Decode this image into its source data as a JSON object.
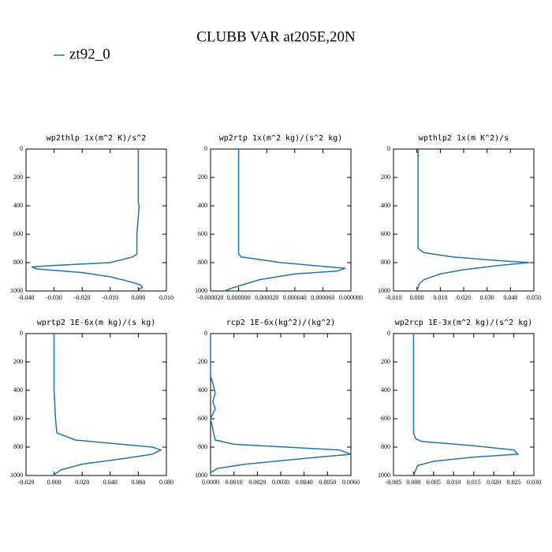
{
  "title": "CLUBB VAR at205E,20N",
  "legend": {
    "name": "zt92_0",
    "color": "#2173b0"
  },
  "chart_data": [
    {
      "type": "line",
      "title": "wp2thlp  1x(m^2 K)/s^2",
      "xlim": [
        -0.04,
        0.01
      ],
      "xticks": [
        {
          "value": -0.04,
          "label": "-0.040"
        },
        {
          "value": -0.03,
          "label": "-0.030"
        },
        {
          "value": -0.02,
          "label": "-0.020"
        },
        {
          "value": -0.01,
          "label": "-0.010"
        },
        {
          "value": 0,
          "label": "0.000"
        },
        {
          "value": 0.01,
          "label": "0.010"
        }
      ],
      "ylim": [
        1000,
        0
      ],
      "yticks": [
        0,
        200,
        400,
        600,
        800,
        1000
      ],
      "x": [
        0,
        0,
        0.0003,
        -0.0005,
        -0.0005,
        -0.002,
        -0.01,
        -0.03,
        -0.038,
        -0.036,
        -0.02,
        -0.01,
        -0.002,
        0.001,
        0.0015,
        0.0005,
        0
      ],
      "y": [
        0,
        380,
        400,
        600,
        740,
        760,
        800,
        820,
        830,
        845,
        870,
        900,
        940,
        960,
        975,
        985,
        1000
      ]
    },
    {
      "type": "line",
      "title": "wp2rtp  1x(m^2 kg)/(s^2 kg)",
      "xlim": [
        -2e-05,
        8e-05
      ],
      "xticks": [
        {
          "value": -2e-05,
          "label": "-0.000020"
        },
        {
          "value": 0,
          "label": "0.000000"
        },
        {
          "value": 2e-05,
          "label": "0.000020"
        },
        {
          "value": 4e-05,
          "label": "0.000040"
        },
        {
          "value": 6e-05,
          "label": "0.000060"
        },
        {
          "value": 8e-05,
          "label": "0.000080"
        }
      ],
      "ylim": [
        1000,
        0
      ],
      "yticks": [
        0,
        200,
        400,
        600,
        800,
        1000
      ],
      "x": [
        0,
        0,
        2e-06,
        3e-05,
        7.6e-05,
        7e-05,
        4e-05,
        1.5e-05,
        5e-06,
        -5e-06,
        -1e-05
      ],
      "y": [
        0,
        740,
        760,
        800,
        840,
        860,
        880,
        920,
        950,
        980,
        1000
      ]
    },
    {
      "type": "line",
      "title": "wpthlp2  1x(m K^2)/s",
      "xlim": [
        -0.01,
        0.05
      ],
      "xticks": [
        {
          "value": -0.01,
          "label": "-0.010"
        },
        {
          "value": 0,
          "label": "0.000"
        },
        {
          "value": 0.01,
          "label": "0.010"
        },
        {
          "value": 0.02,
          "label": "0.020"
        },
        {
          "value": 0.03,
          "label": "0.030"
        },
        {
          "value": 0.04,
          "label": "0.040"
        },
        {
          "value": 0.05,
          "label": "0.050"
        }
      ],
      "ylim": [
        1000,
        0
      ],
      "yticks": [
        0,
        200,
        400,
        600,
        800,
        1000
      ],
      "x": [
        0.0005,
        0.0005,
        0.003,
        0.015,
        0.03,
        0.048,
        0.035,
        0.02,
        0.01,
        0.003,
        0.001,
        0
      ],
      "y": [
        0,
        700,
        730,
        760,
        780,
        800,
        820,
        850,
        880,
        920,
        950,
        1000
      ]
    },
    {
      "type": "line",
      "title": "wprtp2  1E-6x(m kg)/(s kg)",
      "xlim": [
        -0.02,
        0.08
      ],
      "xticks": [
        {
          "value": -0.02,
          "label": "-0.020"
        },
        {
          "value": 0,
          "label": "0.000"
        },
        {
          "value": 0.02,
          "label": "0.020"
        },
        {
          "value": 0.04,
          "label": "0.040"
        },
        {
          "value": 0.06,
          "label": "0.060"
        },
        {
          "value": 0.08,
          "label": "0.080"
        }
      ],
      "ylim": [
        1000,
        0
      ],
      "yticks": [
        0,
        200,
        400,
        600,
        800,
        1000
      ],
      "x": [
        0,
        0,
        0.001,
        0.002,
        0.015,
        0.07,
        0.076,
        0.07,
        0.05,
        0.02,
        0.005,
        -0.001
      ],
      "y": [
        0,
        400,
        600,
        700,
        750,
        800,
        820,
        850,
        880,
        920,
        960,
        1000
      ]
    },
    {
      "type": "line",
      "title": "rcp2  1E-6x(kg^2)/(kg^2)",
      "xlim": [
        0,
        0.006
      ],
      "xticks": [
        {
          "value": 0,
          "label": "0.0000"
        },
        {
          "value": 0.001,
          "label": "0.0010"
        },
        {
          "value": 0.002,
          "label": "0.0020"
        },
        {
          "value": 0.003,
          "label": "0.0030"
        },
        {
          "value": 0.004,
          "label": "0.0040"
        },
        {
          "value": 0.005,
          "label": "0.0050"
        },
        {
          "value": 0.006,
          "label": "0.0060"
        }
      ],
      "ylim": [
        1000,
        0
      ],
      "yticks": [
        0,
        200,
        400,
        600,
        800,
        1000
      ],
      "x": [
        0,
        0,
        0.0001,
        0.0002,
        0.0001,
        0.0002,
        0,
        0.0002,
        0.001,
        0.0055,
        0.006,
        0.004,
        0.0015,
        0.0003,
        0,
        0
      ],
      "y": [
        0,
        300,
        350,
        420,
        480,
        530,
        600,
        750,
        780,
        820,
        850,
        880,
        920,
        950,
        980,
        1000
      ]
    },
    {
      "type": "line",
      "title": "wp2rcp  1E-3x(m^2 kg)/(s^2 kg)",
      "xlim": [
        -0.005,
        0.03
      ],
      "xticks": [
        {
          "value": -0.005,
          "label": "-0.005"
        },
        {
          "value": 0,
          "label": "0.000"
        },
        {
          "value": 0.005,
          "label": "0.005"
        },
        {
          "value": 0.01,
          "label": "0.010"
        },
        {
          "value": 0.015,
          "label": "0.015"
        },
        {
          "value": 0.02,
          "label": "0.020"
        },
        {
          "value": 0.025,
          "label": "0.025"
        },
        {
          "value": 0.03,
          "label": "0.030"
        }
      ],
      "ylim": [
        1000,
        0
      ],
      "yticks": [
        0,
        200,
        400,
        600,
        800,
        1000
      ],
      "x": [
        0,
        0,
        0.0005,
        0.002,
        0.015,
        0.025,
        0.026,
        0.015,
        0.005,
        0.001,
        0
      ],
      "y": [
        0,
        700,
        740,
        760,
        790,
        820,
        850,
        870,
        900,
        930,
        1000
      ]
    }
  ]
}
